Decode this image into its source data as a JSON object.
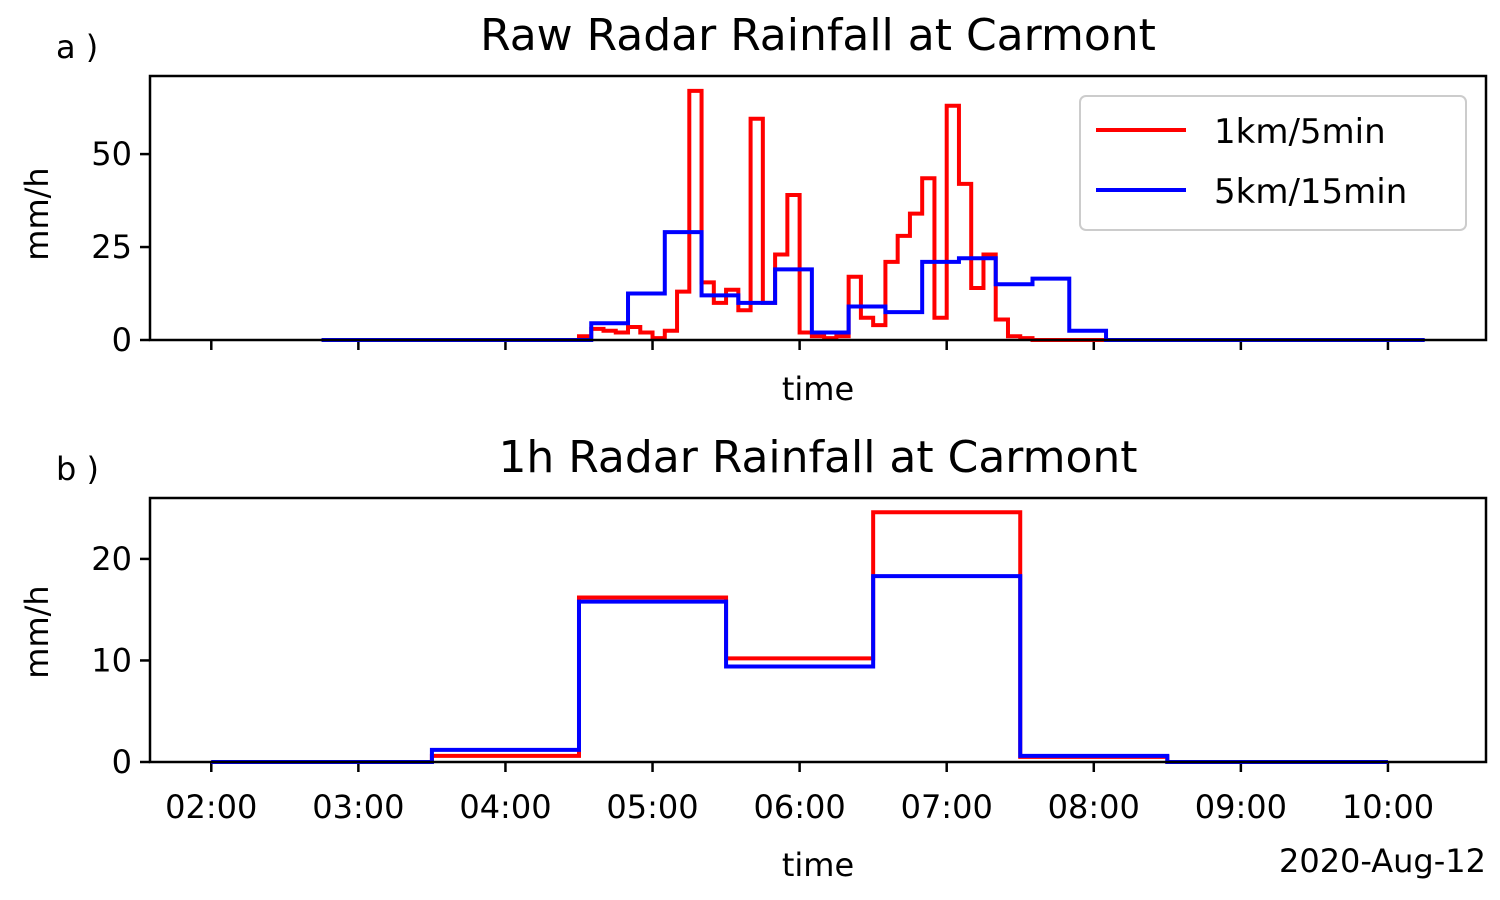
{
  "colors": {
    "series_1": "#ff0000",
    "series_2": "#0000ff"
  },
  "chart_data": [
    {
      "type": "line",
      "step": "post",
      "panel_label": "a )",
      "title": "Raw Radar Rainfall at Carmont",
      "xlabel": "time",
      "ylabel": "mm/h",
      "ylim": [
        0,
        71
      ],
      "yticks": [
        0,
        25,
        50
      ],
      "legend": {
        "placement": "upper right"
      },
      "series": [
        {
          "name": "1km/5min",
          "color": "#ff0000",
          "x": [
            "2020-08-12 02:45",
            "2020-08-12 04:30",
            "2020-08-12 04:35",
            "2020-08-12 04:40",
            "2020-08-12 04:45",
            "2020-08-12 04:50",
            "2020-08-12 04:55",
            "2020-08-12 05:00",
            "2020-08-12 05:05",
            "2020-08-12 05:10",
            "2020-08-12 05:15",
            "2020-08-12 05:20",
            "2020-08-12 05:25",
            "2020-08-12 05:30",
            "2020-08-12 05:35",
            "2020-08-12 05:40",
            "2020-08-12 05:45",
            "2020-08-12 05:50",
            "2020-08-12 05:55",
            "2020-08-12 06:00",
            "2020-08-12 06:05",
            "2020-08-12 06:10",
            "2020-08-12 06:15",
            "2020-08-12 06:20",
            "2020-08-12 06:25",
            "2020-08-12 06:30",
            "2020-08-12 06:35",
            "2020-08-12 06:40",
            "2020-08-12 06:45",
            "2020-08-12 06:50",
            "2020-08-12 06:55",
            "2020-08-12 07:00",
            "2020-08-12 07:05",
            "2020-08-12 07:10",
            "2020-08-12 07:15",
            "2020-08-12 07:20",
            "2020-08-12 07:25",
            "2020-08-12 07:30",
            "2020-08-12 07:35",
            "2020-08-12 07:40",
            "2020-08-12 07:45",
            "2020-08-12 07:50",
            "2020-08-12 07:55",
            "2020-08-12 08:00",
            "2020-08-12 08:05",
            "2020-08-12 08:10"
          ],
          "values": [
            0,
            1,
            3,
            2.5,
            2,
            3.5,
            2,
            0.5,
            2.5,
            13,
            67,
            15.5,
            10,
            13.5,
            8,
            59.5,
            10,
            23,
            39,
            2,
            1,
            0.5,
            1,
            17,
            6,
            4,
            21,
            28,
            34,
            43.5,
            6,
            63,
            42,
            14,
            23,
            5.5,
            1,
            0.5,
            0,
            0,
            0,
            0,
            0,
            0,
            0,
            0
          ]
        },
        {
          "name": "5km/15min",
          "color": "#0000ff",
          "x": [
            "2020-08-12 02:45",
            "2020-08-12 04:35",
            "2020-08-12 04:50",
            "2020-08-12 05:05",
            "2020-08-12 05:20",
            "2020-08-12 05:35",
            "2020-08-12 05:50",
            "2020-08-12 06:05",
            "2020-08-12 06:20",
            "2020-08-12 06:35",
            "2020-08-12 06:50",
            "2020-08-12 07:05",
            "2020-08-12 07:20",
            "2020-08-12 07:35",
            "2020-08-12 07:50",
            "2020-08-12 08:05",
            "2020-08-12 10:15"
          ],
          "values": [
            0,
            4.5,
            12.5,
            29,
            12,
            10,
            19,
            2,
            9,
            7.5,
            21,
            22,
            15,
            16.5,
            2.5,
            0,
            0
          ]
        }
      ]
    },
    {
      "type": "line",
      "step": "post",
      "panel_label": "b )",
      "title": "1h Radar Rainfall at Carmont",
      "xlabel": "time",
      "ylabel": "mm/h",
      "ylim": [
        0,
        26
      ],
      "yticks": [
        0,
        10,
        20
      ],
      "xticks": [
        "02:00",
        "03:00",
        "04:00",
        "05:00",
        "06:00",
        "07:00",
        "08:00",
        "09:00",
        "10:00"
      ],
      "date_label": "2020-Aug-12",
      "xlim": [
        "2020-08-12 01:35",
        "2020-08-12 10:40"
      ],
      "series": [
        {
          "name": "1km/5min",
          "color": "#ff0000",
          "x": [
            "2020-08-12 02:00",
            "2020-08-12 03:30",
            "2020-08-12 04:30",
            "2020-08-12 05:30",
            "2020-08-12 06:30",
            "2020-08-12 07:30",
            "2020-08-12 08:30",
            "2020-08-12 10:00"
          ],
          "values": [
            0,
            0.6,
            16.2,
            10.2,
            24.6,
            0.5,
            0,
            0
          ]
        },
        {
          "name": "5km/15min",
          "color": "#0000ff",
          "x": [
            "2020-08-12 02:00",
            "2020-08-12 03:30",
            "2020-08-12 04:30",
            "2020-08-12 05:30",
            "2020-08-12 06:30",
            "2020-08-12 07:30",
            "2020-08-12 08:30",
            "2020-08-12 10:00"
          ],
          "values": [
            0,
            1.2,
            15.8,
            9.4,
            18.3,
            0.6,
            0,
            0
          ]
        }
      ]
    }
  ]
}
